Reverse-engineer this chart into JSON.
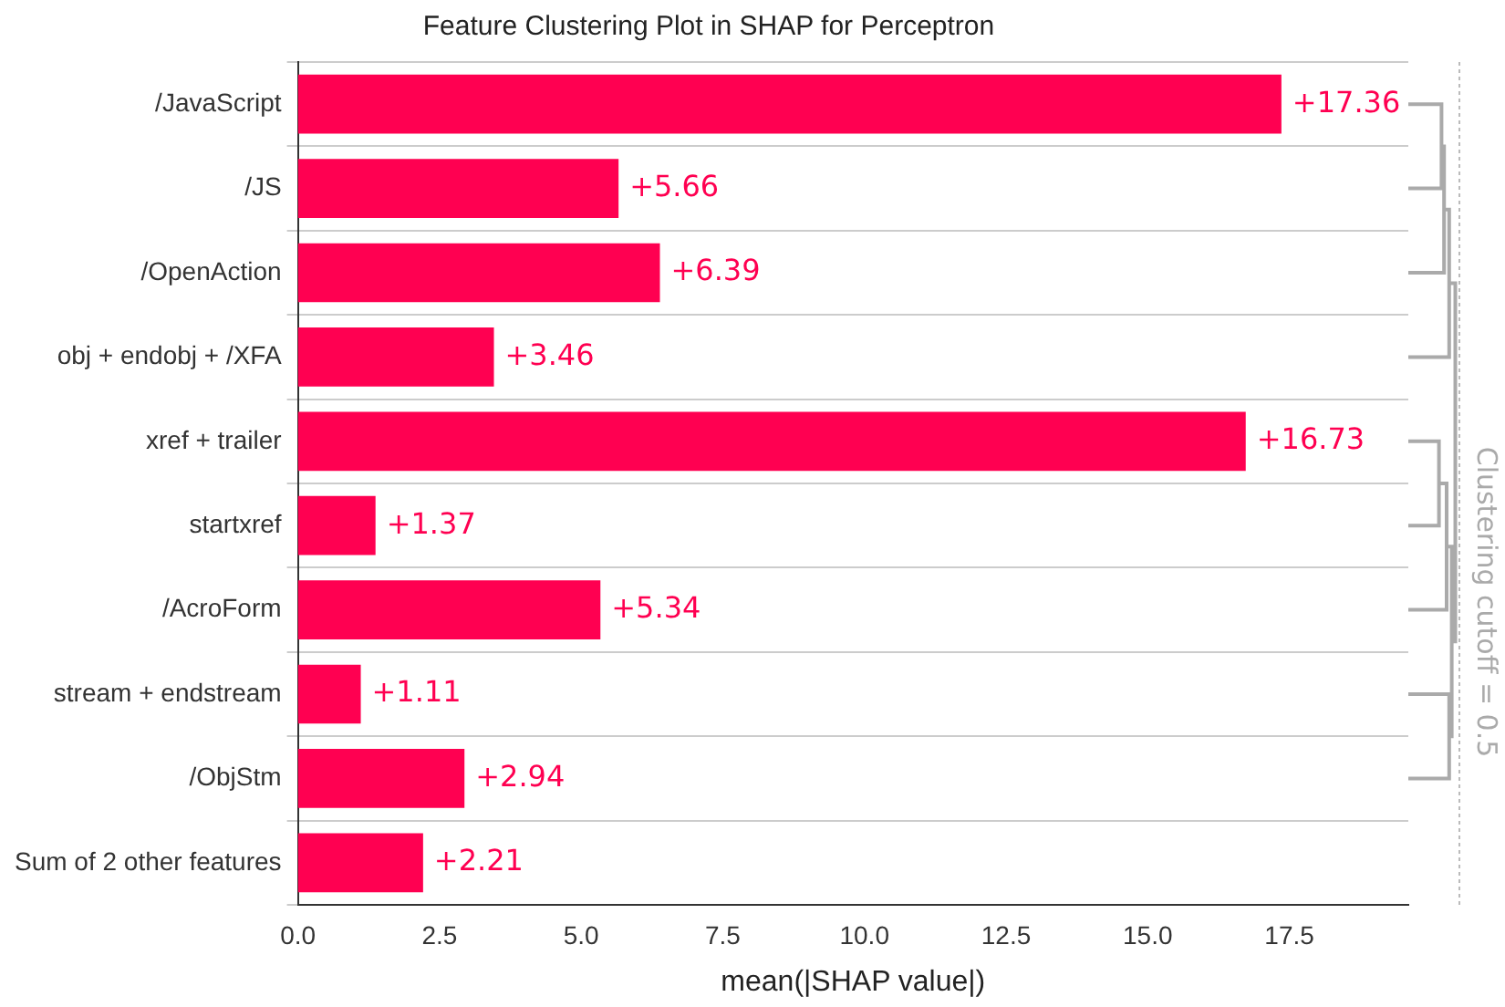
{
  "chart_data": {
    "type": "bar",
    "orientation": "horizontal",
    "title": "Feature Clustering Plot in SHAP for Perceptron",
    "xlabel": "mean(|SHAP value|)",
    "categories": [
      "/JavaScript",
      "/JS",
      "/OpenAction",
      "obj + endobj + /XFA",
      "xref + trailer",
      "startxref",
      "/AcroForm",
      "stream + endstream",
      "/ObjStm",
      "Sum of 2 other features"
    ],
    "values": [
      17.36,
      5.66,
      6.39,
      3.46,
      16.73,
      1.37,
      5.34,
      1.11,
      2.94,
      2.21
    ],
    "value_labels": [
      "+17.36",
      "+5.66",
      "+6.39",
      "+3.46",
      "+16.73",
      "+1.37",
      "+5.34",
      "+1.11",
      "+2.94",
      "+2.21"
    ],
    "color": "#ff0051",
    "xlim": [
      0,
      19.6
    ],
    "xticks": [
      {
        "value": 0,
        "label": "0.0"
      },
      {
        "value": 2.5,
        "label": "2.5"
      },
      {
        "value": 5,
        "label": "5.0"
      },
      {
        "value": 7.5,
        "label": "7.5"
      },
      {
        "value": 10,
        "label": "10.0"
      },
      {
        "value": 12.5,
        "label": "12.5"
      },
      {
        "value": 15,
        "label": "15.0"
      },
      {
        "value": 17.5,
        "label": "17.5"
      }
    ],
    "grid": "y",
    "annotations": [
      "Clustering cutoff = 0.5"
    ]
  }
}
